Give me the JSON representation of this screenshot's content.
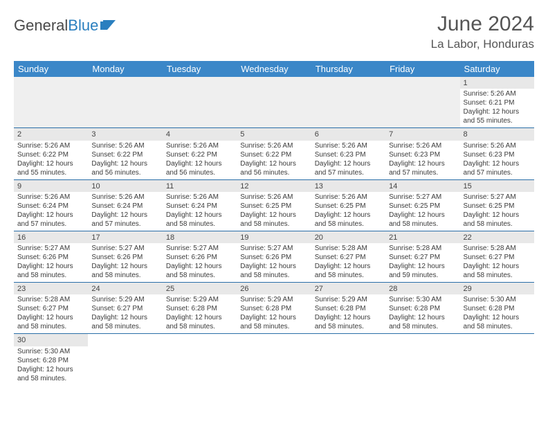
{
  "logo": {
    "word1": "General",
    "word2": "Blue"
  },
  "title": "June 2024",
  "location": "La Labor, Honduras",
  "colors": {
    "header_bg": "#3b87c8",
    "header_text": "#ffffff",
    "row_divider": "#2a6fa8",
    "daynum_bg": "#e8e8e8",
    "page_bg": "#ffffff",
    "text": "#3a3a3a",
    "logo_blue": "#2a7fbf"
  },
  "dayHeaders": [
    "Sunday",
    "Monday",
    "Tuesday",
    "Wednesday",
    "Thursday",
    "Friday",
    "Saturday"
  ],
  "weeks": [
    [
      null,
      null,
      null,
      null,
      null,
      null,
      {
        "n": "1",
        "sr": "Sunrise: 5:26 AM",
        "ss": "Sunset: 6:21 PM",
        "dl": "Daylight: 12 hours and 55 minutes."
      }
    ],
    [
      {
        "n": "2",
        "sr": "Sunrise: 5:26 AM",
        "ss": "Sunset: 6:22 PM",
        "dl": "Daylight: 12 hours and 55 minutes."
      },
      {
        "n": "3",
        "sr": "Sunrise: 5:26 AM",
        "ss": "Sunset: 6:22 PM",
        "dl": "Daylight: 12 hours and 56 minutes."
      },
      {
        "n": "4",
        "sr": "Sunrise: 5:26 AM",
        "ss": "Sunset: 6:22 PM",
        "dl": "Daylight: 12 hours and 56 minutes."
      },
      {
        "n": "5",
        "sr": "Sunrise: 5:26 AM",
        "ss": "Sunset: 6:22 PM",
        "dl": "Daylight: 12 hours and 56 minutes."
      },
      {
        "n": "6",
        "sr": "Sunrise: 5:26 AM",
        "ss": "Sunset: 6:23 PM",
        "dl": "Daylight: 12 hours and 57 minutes."
      },
      {
        "n": "7",
        "sr": "Sunrise: 5:26 AM",
        "ss": "Sunset: 6:23 PM",
        "dl": "Daylight: 12 hours and 57 minutes."
      },
      {
        "n": "8",
        "sr": "Sunrise: 5:26 AM",
        "ss": "Sunset: 6:23 PM",
        "dl": "Daylight: 12 hours and 57 minutes."
      }
    ],
    [
      {
        "n": "9",
        "sr": "Sunrise: 5:26 AM",
        "ss": "Sunset: 6:24 PM",
        "dl": "Daylight: 12 hours and 57 minutes."
      },
      {
        "n": "10",
        "sr": "Sunrise: 5:26 AM",
        "ss": "Sunset: 6:24 PM",
        "dl": "Daylight: 12 hours and 57 minutes."
      },
      {
        "n": "11",
        "sr": "Sunrise: 5:26 AM",
        "ss": "Sunset: 6:24 PM",
        "dl": "Daylight: 12 hours and 58 minutes."
      },
      {
        "n": "12",
        "sr": "Sunrise: 5:26 AM",
        "ss": "Sunset: 6:25 PM",
        "dl": "Daylight: 12 hours and 58 minutes."
      },
      {
        "n": "13",
        "sr": "Sunrise: 5:26 AM",
        "ss": "Sunset: 6:25 PM",
        "dl": "Daylight: 12 hours and 58 minutes."
      },
      {
        "n": "14",
        "sr": "Sunrise: 5:27 AM",
        "ss": "Sunset: 6:25 PM",
        "dl": "Daylight: 12 hours and 58 minutes."
      },
      {
        "n": "15",
        "sr": "Sunrise: 5:27 AM",
        "ss": "Sunset: 6:25 PM",
        "dl": "Daylight: 12 hours and 58 minutes."
      }
    ],
    [
      {
        "n": "16",
        "sr": "Sunrise: 5:27 AM",
        "ss": "Sunset: 6:26 PM",
        "dl": "Daylight: 12 hours and 58 minutes."
      },
      {
        "n": "17",
        "sr": "Sunrise: 5:27 AM",
        "ss": "Sunset: 6:26 PM",
        "dl": "Daylight: 12 hours and 58 minutes."
      },
      {
        "n": "18",
        "sr": "Sunrise: 5:27 AM",
        "ss": "Sunset: 6:26 PM",
        "dl": "Daylight: 12 hours and 58 minutes."
      },
      {
        "n": "19",
        "sr": "Sunrise: 5:27 AM",
        "ss": "Sunset: 6:26 PM",
        "dl": "Daylight: 12 hours and 58 minutes."
      },
      {
        "n": "20",
        "sr": "Sunrise: 5:28 AM",
        "ss": "Sunset: 6:27 PM",
        "dl": "Daylight: 12 hours and 58 minutes."
      },
      {
        "n": "21",
        "sr": "Sunrise: 5:28 AM",
        "ss": "Sunset: 6:27 PM",
        "dl": "Daylight: 12 hours and 59 minutes."
      },
      {
        "n": "22",
        "sr": "Sunrise: 5:28 AM",
        "ss": "Sunset: 6:27 PM",
        "dl": "Daylight: 12 hours and 58 minutes."
      }
    ],
    [
      {
        "n": "23",
        "sr": "Sunrise: 5:28 AM",
        "ss": "Sunset: 6:27 PM",
        "dl": "Daylight: 12 hours and 58 minutes."
      },
      {
        "n": "24",
        "sr": "Sunrise: 5:29 AM",
        "ss": "Sunset: 6:27 PM",
        "dl": "Daylight: 12 hours and 58 minutes."
      },
      {
        "n": "25",
        "sr": "Sunrise: 5:29 AM",
        "ss": "Sunset: 6:28 PM",
        "dl": "Daylight: 12 hours and 58 minutes."
      },
      {
        "n": "26",
        "sr": "Sunrise: 5:29 AM",
        "ss": "Sunset: 6:28 PM",
        "dl": "Daylight: 12 hours and 58 minutes."
      },
      {
        "n": "27",
        "sr": "Sunrise: 5:29 AM",
        "ss": "Sunset: 6:28 PM",
        "dl": "Daylight: 12 hours and 58 minutes."
      },
      {
        "n": "28",
        "sr": "Sunrise: 5:30 AM",
        "ss": "Sunset: 6:28 PM",
        "dl": "Daylight: 12 hours and 58 minutes."
      },
      {
        "n": "29",
        "sr": "Sunrise: 5:30 AM",
        "ss": "Sunset: 6:28 PM",
        "dl": "Daylight: 12 hours and 58 minutes."
      }
    ],
    [
      {
        "n": "30",
        "sr": "Sunrise: 5:30 AM",
        "ss": "Sunset: 6:28 PM",
        "dl": "Daylight: 12 hours and 58 minutes."
      },
      null,
      null,
      null,
      null,
      null,
      null
    ]
  ]
}
